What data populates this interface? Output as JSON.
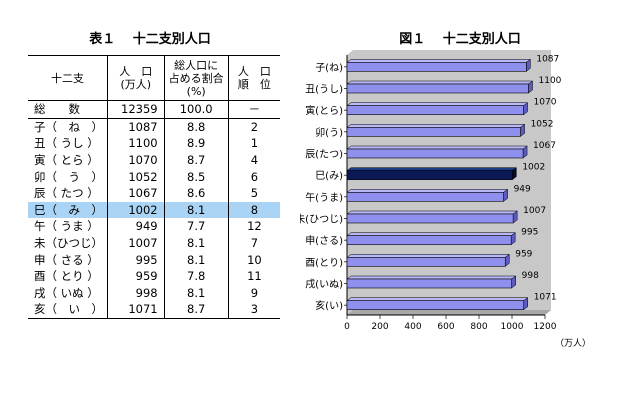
{
  "table": {
    "title": "表１　 十二支別人口",
    "headers": {
      "sign": "十二支",
      "pop_line1": "人　口",
      "pop_line2": "(万人)",
      "share_line1": "総人口に",
      "share_line2": "占める割合",
      "share_line3": "(%)",
      "rank_line1": "人　口",
      "rank_line2": "順　位"
    },
    "rows": [
      {
        "sign": "総　　数",
        "pop": "12359",
        "share": "100.0",
        "rank": "－"
      },
      {
        "sign": "子（　ね　）",
        "pop": "1087",
        "share": "8.8",
        "rank": "2"
      },
      {
        "sign": "丑（ うし ）",
        "pop": "1100",
        "share": "8.9",
        "rank": "1"
      },
      {
        "sign": "寅（ とら ）",
        "pop": "1070",
        "share": "8.7",
        "rank": "4"
      },
      {
        "sign": "卯（　う　）",
        "pop": "1052",
        "share": "8.5",
        "rank": "6"
      },
      {
        "sign": "辰（ たつ ）",
        "pop": "1067",
        "share": "8.6",
        "rank": "5"
      },
      {
        "sign": "巳（　み　）",
        "pop": "1002",
        "share": "8.1",
        "rank": "8"
      },
      {
        "sign": "午（ うま ）",
        "pop": "949",
        "share": "7.7",
        "rank": "12"
      },
      {
        "sign": "未（ひつじ）",
        "pop": "1007",
        "share": "8.1",
        "rank": "7"
      },
      {
        "sign": "申（ さる ）",
        "pop": "995",
        "share": "8.1",
        "rank": "10"
      },
      {
        "sign": "酉（ とり ）",
        "pop": "959",
        "share": "7.8",
        "rank": "11"
      },
      {
        "sign": "戌（ いぬ ）",
        "pop": "998",
        "share": "8.1",
        "rank": "9"
      },
      {
        "sign": "亥（　い　）",
        "pop": "1071",
        "share": "8.7",
        "rank": "3"
      }
    ],
    "highlight_row_color": "#a9d4f5"
  },
  "figure": {
    "title": "図１　 十二支別人口",
    "unit_label": "（万人）"
  },
  "chart_data": {
    "type": "bar",
    "orientation": "horizontal",
    "categories": [
      "子(ね)",
      "丑(うし)",
      "寅(とら)",
      "卯(う)",
      "辰(たつ)",
      "巳(み)",
      "午(うま)",
      "未(ひつじ)",
      "申(さる)",
      "酉(とり)",
      "戌(いぬ)",
      "亥(い)"
    ],
    "values": [
      1087,
      1100,
      1070,
      1052,
      1067,
      1002,
      949,
      1007,
      995,
      959,
      998,
      1071
    ],
    "xlim": [
      0,
      1200
    ],
    "xticks": [
      "0",
      "200",
      "400",
      "600",
      "800",
      "1000",
      "1200"
    ],
    "highlight_index": 5,
    "bar_color": "#8f8fee",
    "highlight_color": "#0b1a55",
    "plot_bg": "#c8c8c8",
    "grid": false,
    "style": "3d"
  }
}
